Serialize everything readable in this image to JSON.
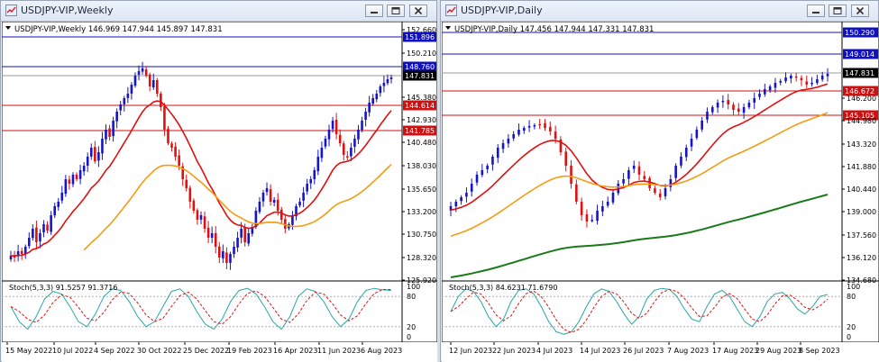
{
  "windows": [
    {
      "title": "USDJPY-VIP,Weekly",
      "info": "USDJPY-VIP,Weekly  146.969 147.944 145.897 147.831",
      "price_labels": [
        "152.660",
        "151.896",
        "150.210",
        "148.760",
        "147.831",
        "145.380",
        "144.614",
        "142.930",
        "141.785",
        "140.480",
        "138.030",
        "135.650",
        "133.200",
        "130.750",
        "128.320",
        "125.920"
      ],
      "oscillator_label": "Stoch(5,3,3) 91.5257 91.3716",
      "osc_levels": [
        "100",
        "80",
        "20",
        "0"
      ],
      "dates": [
        "15 May 2022",
        "10 Jul 2022",
        "4 Sep 2022",
        "30 Oct 2022",
        "25 Dec 2022",
        "19 Feb 2023",
        "16 Apr 2023",
        "11 Jun 2023",
        "6 Aug 2023"
      ]
    },
    {
      "title": "USDJPY-VIP,Daily",
      "info": "USDJPY-VIP,Daily  147.456 147.944 147.331 147.831",
      "price_labels": [
        "150.290",
        "149.014",
        "147.831",
        "146.200",
        "146.672",
        "145.105",
        "144.980",
        "143.320",
        "141.880",
        "140.440",
        "139.000",
        "137.560",
        "136.120",
        "134.680"
      ],
      "oscillator_label": "Stoch(5,3,3) 84.6231 71.6790",
      "osc_levels": [
        "100",
        "80",
        "20",
        "0"
      ],
      "dates": [
        "12 Jun 2023",
        "22 Jun 2023",
        "4 Jul 2023",
        "14 Jul 2023",
        "26 Jul 2023",
        "7 Aug 2023",
        "17 Aug 2023",
        "29 Aug 2023",
        "8 Sep 2023"
      ]
    }
  ],
  "colors": {
    "bull": "#1515c8",
    "bear": "#e01010",
    "ma_fast": "#e01010",
    "ma_mid": "#f39c12",
    "ma_slow": "#187a18",
    "level_blue": "#1010c0",
    "level_red": "#d01010"
  }
}
